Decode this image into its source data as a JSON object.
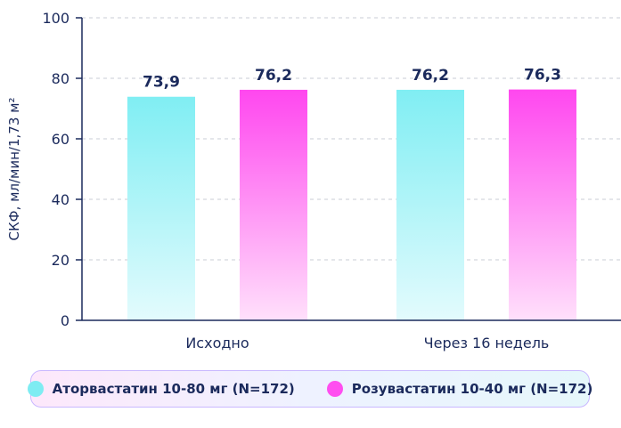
{
  "chart_data": {
    "type": "bar",
    "categories": [
      "Исходно",
      "Через 16 недель"
    ],
    "series": [
      {
        "name": "Аторвастатин 10-80 мг (N=172)",
        "values": [
          73.9,
          76.2
        ],
        "labels": [
          "73,9",
          "76,2"
        ],
        "color": "#7eecf2"
      },
      {
        "name": "Розувастатин 10-40 мг (N=172)",
        "values": [
          76.2,
          76.3
        ],
        "labels": [
          "76,2",
          "76,3"
        ],
        "color": "#ff4ef0"
      }
    ],
    "ylabel": "СКФ, мл/мин/1,73 м²",
    "ylim": [
      0,
      100
    ],
    "yticks": [
      "0",
      "20",
      "40",
      "60",
      "80",
      "100"
    ],
    "grid": true,
    "legend_position": "bottom"
  }
}
